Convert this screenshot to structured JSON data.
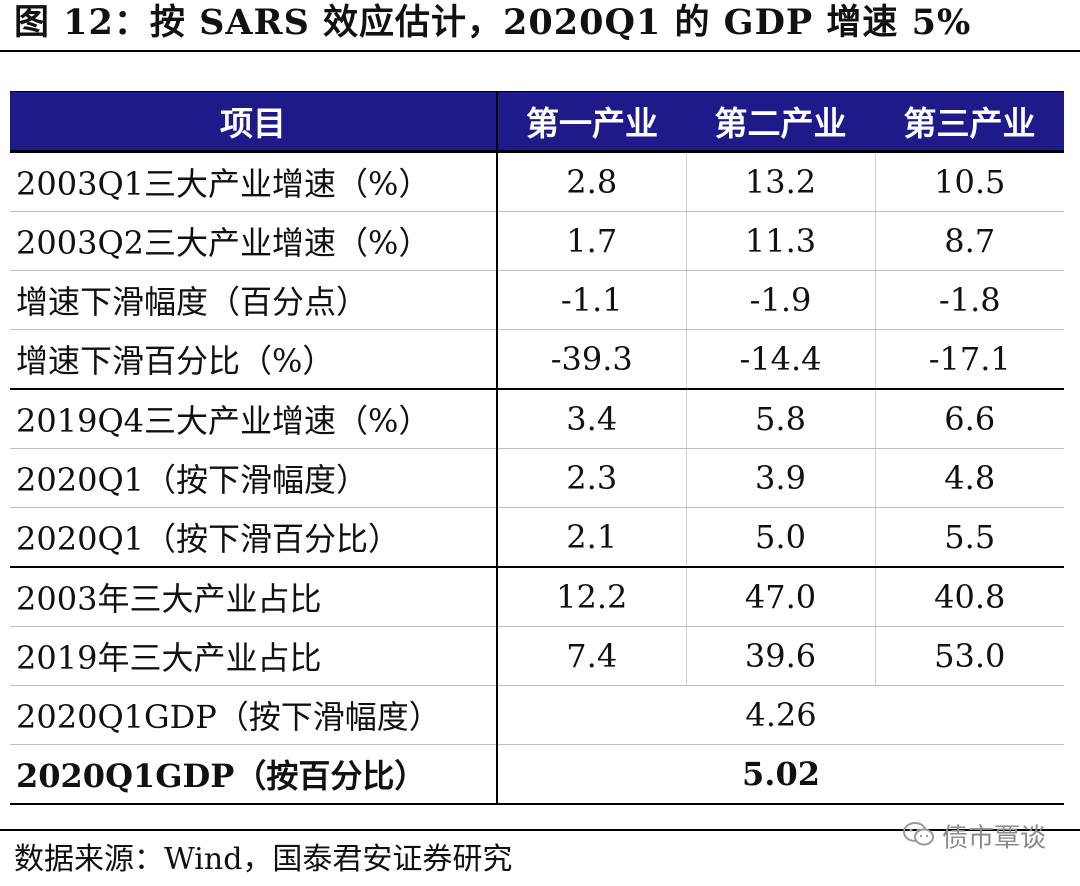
{
  "title": "图 12：按 SARS 效应估计，2020Q1 的 GDP 增速 5%",
  "header": {
    "item": "项目",
    "col1": "第一产业",
    "col2": "第二产业",
    "col3": "第三产业"
  },
  "rows": [
    {
      "label": "2003Q1三大产业增速（%）",
      "v1": "2.8",
      "v2": "13.2",
      "v3": "10.5"
    },
    {
      "label": "2003Q2三大产业增速（%）",
      "v1": "1.7",
      "v2": "11.3",
      "v3": "8.7"
    },
    {
      "label": "增速下滑幅度（百分点）",
      "v1": "-1.1",
      "v2": "-1.9",
      "v3": "-1.8"
    },
    {
      "label": "增速下滑百分比（%）",
      "v1": "-39.3",
      "v2": "-14.4",
      "v3": "-17.1"
    },
    {
      "label": "2019Q4三大产业增速（%）",
      "v1": "3.4",
      "v2": "5.8",
      "v3": "6.6"
    },
    {
      "label": "2020Q1（按下滑幅度）",
      "v1": "2.3",
      "v2": "3.9",
      "v3": "4.8"
    },
    {
      "label": "2020Q1（按下滑百分比）",
      "v1": "2.1",
      "v2": "5.0",
      "v3": "5.5"
    },
    {
      "label": "2003年三大产业占比",
      "v1": "12.2",
      "v2": "47.0",
      "v3": "40.8"
    },
    {
      "label": "2019年三大产业占比",
      "v1": "7.4",
      "v2": "39.6",
      "v3": "53.0"
    }
  ],
  "gdp_rows": [
    {
      "label": "2020Q1GDP（按下滑幅度）",
      "value": "4.26"
    },
    {
      "label": "2020Q1GDP（按百分比）",
      "value": "5.02"
    }
  ],
  "source": "数据来源：Wind，国泰君安证券研究",
  "watermark": {
    "text": "债市覃谈",
    "icon": "wechat-icon"
  },
  "colors": {
    "header_bg": "#1f1a8a",
    "header_text": "#ffffff"
  }
}
